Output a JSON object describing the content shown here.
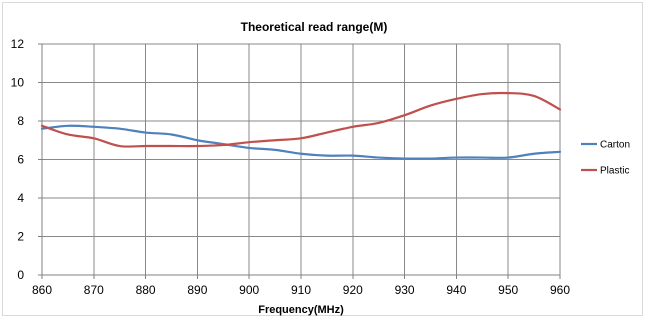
{
  "chart_data": {
    "type": "line",
    "title": "Theoretical read range(M)",
    "xlabel": "Frequency(MHz)",
    "ylabel": "",
    "xlim": [
      860,
      960
    ],
    "ylim": [
      0,
      12
    ],
    "x_ticks": [
      860,
      870,
      880,
      890,
      900,
      910,
      920,
      930,
      940,
      950,
      960
    ],
    "y_ticks": [
      0,
      2,
      4,
      6,
      8,
      10,
      12
    ],
    "grid": true,
    "legend_position": "right",
    "x": [
      860,
      865,
      870,
      875,
      880,
      885,
      890,
      895,
      900,
      905,
      910,
      915,
      920,
      925,
      930,
      935,
      940,
      945,
      950,
      955,
      960
    ],
    "series": [
      {
        "name": "Carton",
        "color": "#4f81bd",
        "values": [
          7.6,
          7.75,
          7.7,
          7.6,
          7.4,
          7.3,
          7.0,
          6.8,
          6.6,
          6.5,
          6.3,
          6.2,
          6.2,
          6.1,
          6.05,
          6.05,
          6.1,
          6.1,
          6.1,
          6.3,
          6.4
        ]
      },
      {
        "name": "Plastic",
        "color": "#c0504d",
        "values": [
          7.75,
          7.3,
          7.1,
          6.7,
          6.7,
          6.7,
          6.7,
          6.75,
          6.9,
          7.0,
          7.1,
          7.4,
          7.7,
          7.9,
          8.3,
          8.8,
          9.15,
          9.4,
          9.45,
          9.3,
          8.6
        ]
      }
    ]
  }
}
